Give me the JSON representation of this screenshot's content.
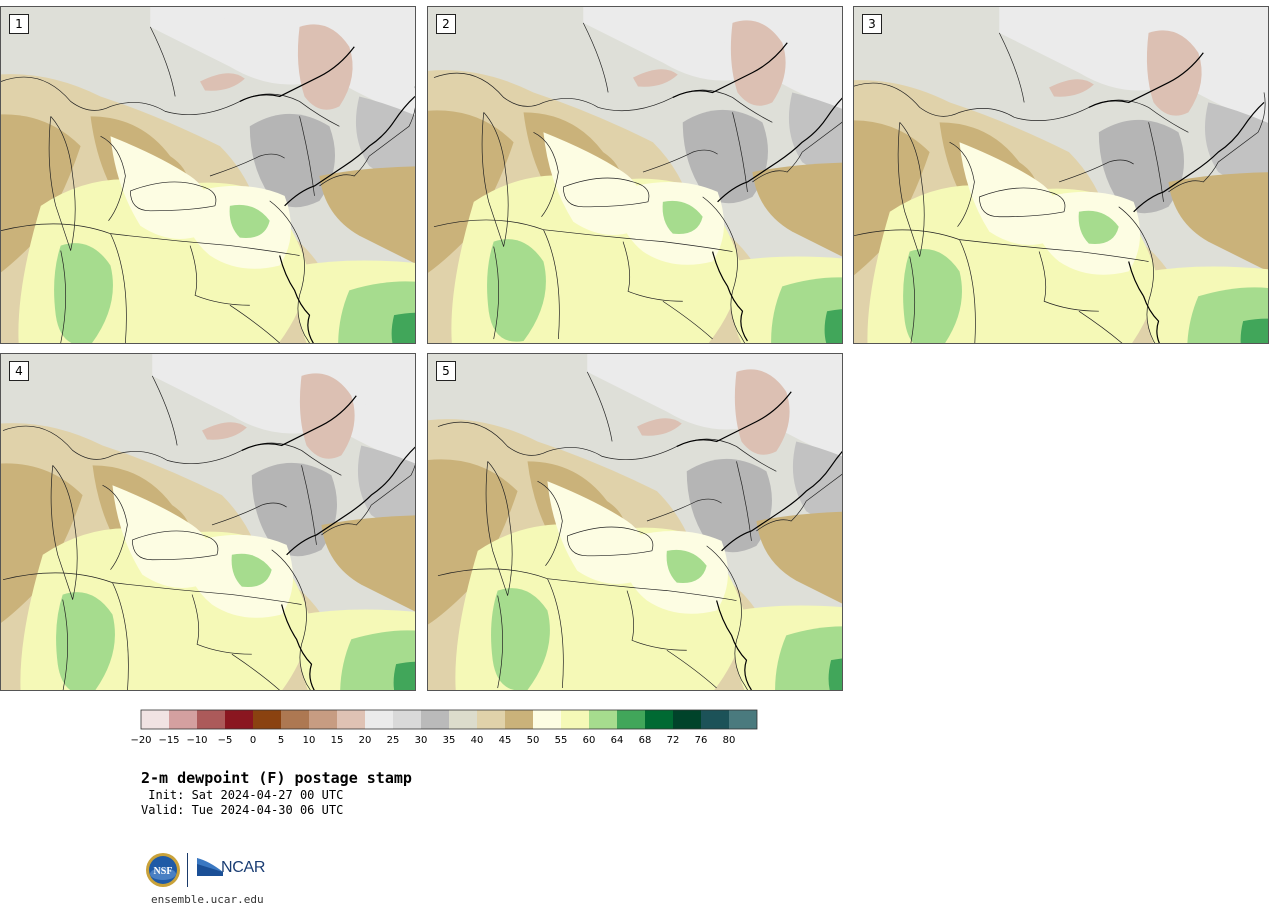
{
  "panels": [
    {
      "label": "1",
      "variant": 0
    },
    {
      "label": "2",
      "variant": 1
    },
    {
      "label": "3",
      "variant": 2
    },
    {
      "label": "4",
      "variant": 3
    },
    {
      "label": "5",
      "variant": 4
    }
  ],
  "colorbar": {
    "ticks": [
      "−20",
      "−15",
      "−10",
      "−5",
      "0",
      "5",
      "10",
      "15",
      "20",
      "25",
      "30",
      "35",
      "40",
      "45",
      "50",
      "55",
      "60",
      "64",
      "68",
      "72",
      "76",
      "80"
    ],
    "colors": [
      "#f1e3e3",
      "#d4a0a0",
      "#ac5a5a",
      "#8a1620",
      "#8a4210",
      "#ad7852",
      "#c79c82",
      "#dfc2b4",
      "#ebebeb",
      "#d9d9d9",
      "#bababa",
      "#dcdccc",
      "#e0d2aa",
      "#cab27a",
      "#fdfde3",
      "#f5f9b7",
      "#a6dc8e",
      "#41a65a",
      "#006a33",
      "#00432a",
      "#1c5258",
      "#4a7a7e"
    ]
  },
  "title": {
    "main": "2-m dewpoint (F) postage stamp",
    "init": " Init: Sat 2024-04-27 00 UTC",
    "valid": "Valid: Tue 2024-04-30 06 UTC"
  },
  "logos": {
    "nsf_text": "NSF",
    "ncar_text": "NCAR"
  },
  "site": "ensemble.ucar.edu"
}
